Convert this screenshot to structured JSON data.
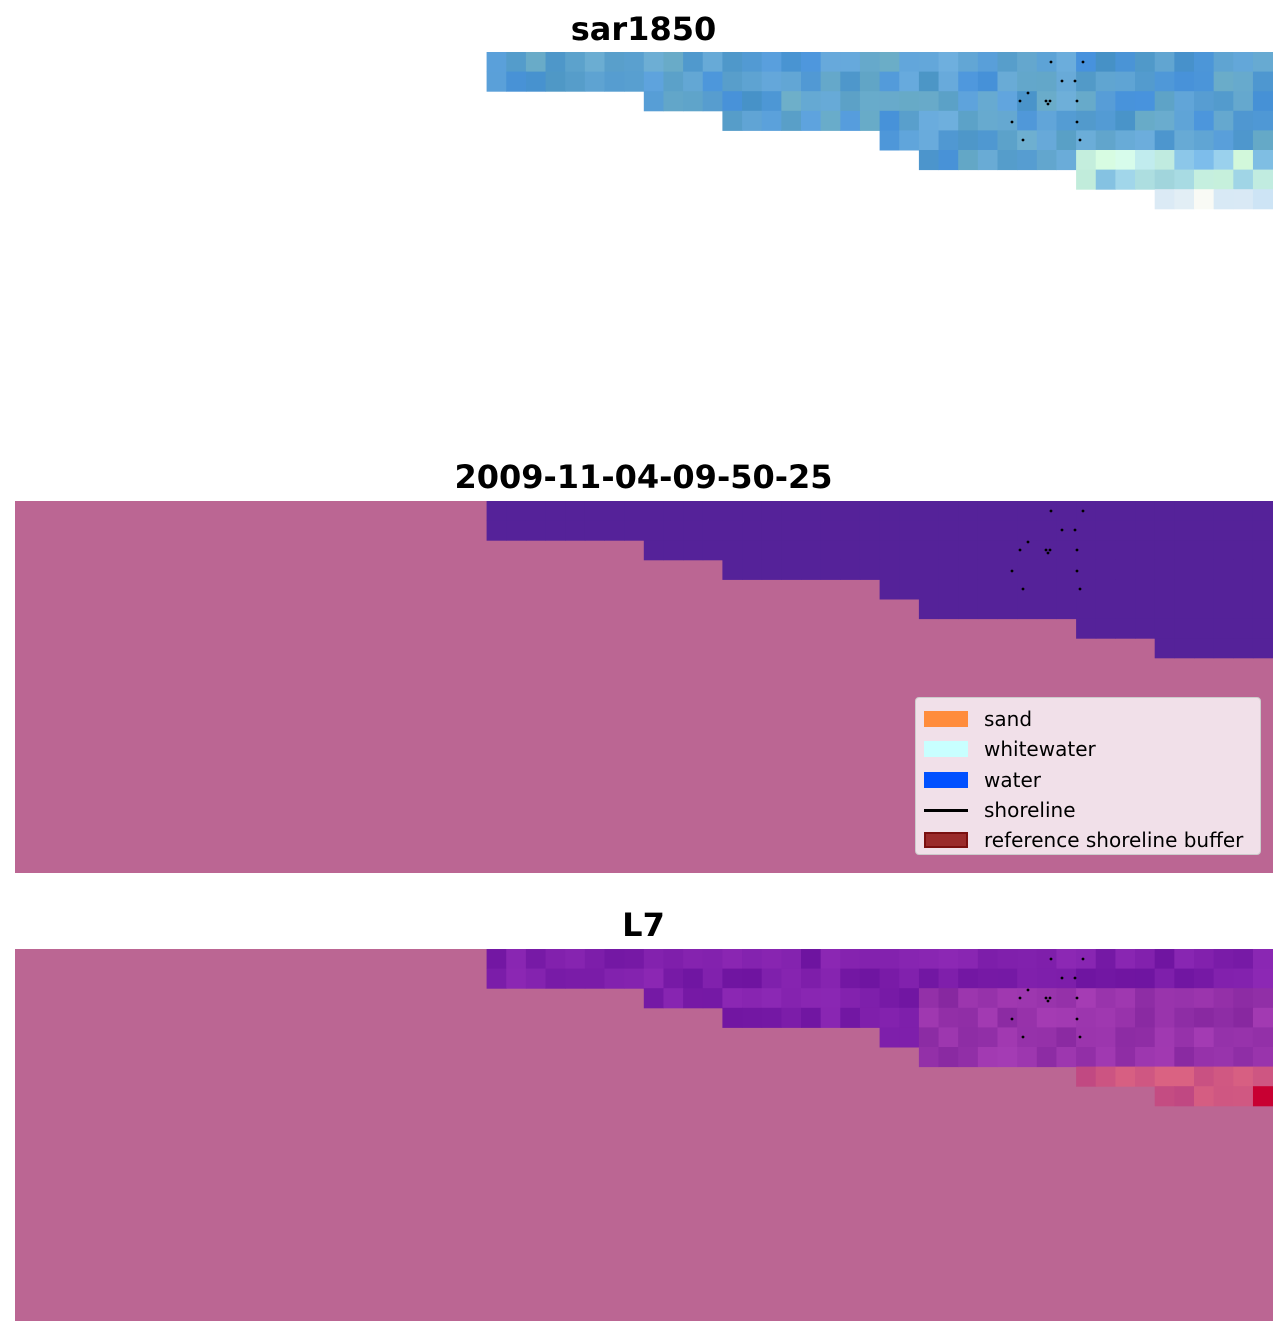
{
  "panels": {
    "top": {
      "title": "sar1850"
    },
    "middle": {
      "title": "2009-11-04-09-50-25"
    },
    "bottom": {
      "title": "L7"
    }
  },
  "legend": {
    "items": [
      {
        "label": "sand",
        "color": "#ff8c3c",
        "kind": "patch"
      },
      {
        "label": "whitewater",
        "color": "#c8ffff",
        "kind": "patch"
      },
      {
        "label": "water",
        "color": "#0050ff",
        "kind": "patch"
      },
      {
        "label": "shoreline",
        "color": "#000000",
        "kind": "line"
      },
      {
        "label": "reference shoreline buffer",
        "color": "#9a2b2b",
        "kind": "patch"
      }
    ]
  },
  "chart_data": [
    {
      "type": "heatmap",
      "title": "sar1850",
      "grid": false,
      "axes": "off",
      "colors": {
        "nodata": "#ffffff",
        "water_tone": "#5aa0d2",
        "foam_tone": "#c8e8f0"
      }
    },
    {
      "type": "heatmap",
      "title": "2009-11-04-09-50-25",
      "grid": false,
      "axes": "off",
      "legend_position": "lower right",
      "colors": {
        "background": "#bb6693",
        "water_class": "#552299"
      }
    },
    {
      "type": "heatmap",
      "title": "L7",
      "grid": false,
      "axes": "off",
      "colors": {
        "background": "#bb6693",
        "low": "#4a00a8",
        "high": "#c8002e"
      }
    }
  ]
}
